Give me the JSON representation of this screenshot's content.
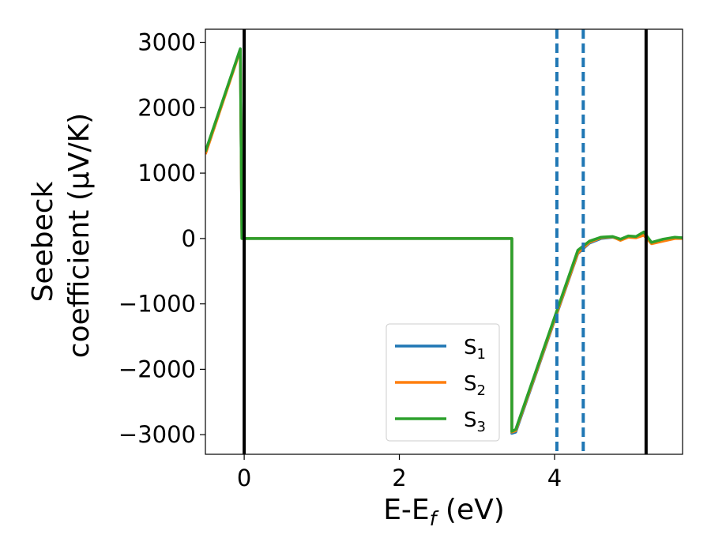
{
  "chart_data": {
    "type": "line",
    "title": "",
    "xlabel": "E-E_f (eV)",
    "xlabel_parts": {
      "base": "E-E",
      "sub": "f",
      "rest": " (eV)"
    },
    "ylabel_line1": "Seebeck",
    "ylabel_line2": "coefficient  (μV/K)",
    "xlim": [
      -0.5,
      5.65
    ],
    "ylim": [
      -3300,
      3200
    ],
    "xticks": [
      0,
      2,
      4
    ],
    "xtick_labels": [
      "0",
      "2",
      "4"
    ],
    "yticks": [
      3000,
      2000,
      1000,
      0,
      -1000,
      -2000,
      -3000
    ],
    "ytick_labels": [
      "3000",
      "2000",
      "1000",
      "0",
      "−1000",
      "−2000",
      "−3000"
    ],
    "grid": false,
    "legend_position": "lower-right",
    "vlines_solid": [
      0,
      5.18
    ],
    "vlines_dashed": [
      4.03,
      4.37
    ],
    "vline_solid_color": "#000000",
    "vline_dashed_color": "#1f77b4",
    "series": [
      {
        "name": "S1",
        "label_base": "S",
        "label_sub": "1",
        "color": "#1f77b4",
        "x": [
          -0.5,
          -0.05,
          -0.03,
          3.45,
          3.45,
          3.5,
          4.3,
          4.45,
          4.6,
          4.75,
          4.85,
          4.95,
          5.05,
          5.15,
          5.25,
          5.4,
          5.55,
          5.65
        ],
        "y": [
          1300,
          2900,
          0,
          0,
          -2980,
          -2960,
          -230,
          -70,
          0,
          20,
          -20,
          30,
          20,
          60,
          -70,
          -30,
          10,
          10
        ]
      },
      {
        "name": "S2",
        "label_base": "S",
        "label_sub": "2",
        "color": "#ff7f0e",
        "x": [
          -0.5,
          -0.05,
          -0.03,
          3.45,
          3.45,
          3.5,
          4.3,
          4.45,
          4.6,
          4.75,
          4.85,
          4.95,
          5.05,
          5.15,
          5.25,
          5.4,
          5.55,
          5.65
        ],
        "y": [
          1290,
          2880,
          0,
          0,
          -2960,
          -2940,
          -220,
          -60,
          10,
          25,
          -30,
          20,
          10,
          50,
          -80,
          -40,
          0,
          0
        ]
      },
      {
        "name": "S3",
        "label_base": "S",
        "label_sub": "3",
        "color": "#2ca02c",
        "x": [
          -0.5,
          -0.05,
          -0.03,
          3.45,
          3.45,
          3.5,
          4.3,
          4.45,
          4.6,
          4.75,
          4.85,
          4.95,
          5.05,
          5.15,
          5.25,
          5.4,
          5.55,
          5.65
        ],
        "y": [
          1330,
          2900,
          0,
          0,
          -2950,
          -2920,
          -180,
          -40,
          20,
          30,
          -10,
          40,
          30,
          100,
          -60,
          -10,
          20,
          10
        ]
      }
    ]
  }
}
